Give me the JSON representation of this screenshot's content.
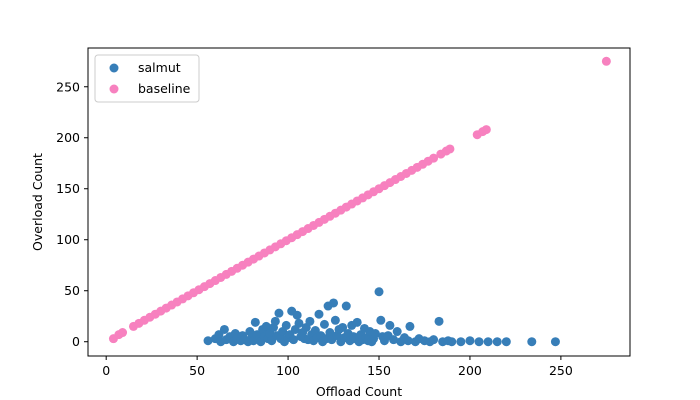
{
  "chart_data": {
    "type": "scatter",
    "xlabel": "Offload Count",
    "ylabel": "Overload Count",
    "xlim": [
      -10,
      288
    ],
    "ylim": [
      -14,
      288
    ],
    "xticks": [
      0,
      50,
      100,
      150,
      200,
      250
    ],
    "yticks": [
      0,
      50,
      100,
      150,
      200,
      250
    ],
    "grid": false,
    "legend_position": "top-left",
    "series": [
      {
        "name": "salmut",
        "color": "#377eb8",
        "points": [
          [
            56,
            1
          ],
          [
            60,
            3
          ],
          [
            62,
            7
          ],
          [
            63,
            0
          ],
          [
            65,
            12
          ],
          [
            66,
            2
          ],
          [
            68,
            5
          ],
          [
            70,
            0
          ],
          [
            71,
            8
          ],
          [
            72,
            3
          ],
          [
            74,
            1
          ],
          [
            75,
            6
          ],
          [
            76,
            2
          ],
          [
            78,
            0
          ],
          [
            79,
            10
          ],
          [
            80,
            4
          ],
          [
            81,
            1
          ],
          [
            82,
            19
          ],
          [
            83,
            7
          ],
          [
            84,
            2
          ],
          [
            85,
            0
          ],
          [
            86,
            12
          ],
          [
            87,
            5
          ],
          [
            88,
            15
          ],
          [
            89,
            3
          ],
          [
            90,
            8
          ],
          [
            91,
            1
          ],
          [
            92,
            14
          ],
          [
            93,
            20
          ],
          [
            94,
            6
          ],
          [
            95,
            28
          ],
          [
            96,
            3
          ],
          [
            97,
            10
          ],
          [
            98,
            0
          ],
          [
            99,
            16
          ],
          [
            100,
            4
          ],
          [
            101,
            7
          ],
          [
            102,
            30
          ],
          [
            103,
            2
          ],
          [
            104,
            12
          ],
          [
            105,
            26
          ],
          [
            106,
            18
          ],
          [
            107,
            5
          ],
          [
            108,
            9
          ],
          [
            109,
            3
          ],
          [
            110,
            14
          ],
          [
            111,
            2
          ],
          [
            112,
            20
          ],
          [
            113,
            7
          ],
          [
            114,
            1
          ],
          [
            115,
            11
          ],
          [
            116,
            4
          ],
          [
            117,
            27
          ],
          [
            118,
            6
          ],
          [
            119,
            0
          ],
          [
            120,
            17
          ],
          [
            121,
            3
          ],
          [
            122,
            35
          ],
          [
            123,
            9
          ],
          [
            124,
            2
          ],
          [
            125,
            38
          ],
          [
            126,
            21
          ],
          [
            127,
            6
          ],
          [
            128,
            12
          ],
          [
            129,
            0
          ],
          [
            130,
            14
          ],
          [
            131,
            4
          ],
          [
            132,
            35
          ],
          [
            133,
            8
          ],
          [
            134,
            1
          ],
          [
            135,
            16
          ],
          [
            136,
            5
          ],
          [
            137,
            3
          ],
          [
            138,
            19
          ],
          [
            139,
            0
          ],
          [
            140,
            7
          ],
          [
            141,
            2
          ],
          [
            142,
            13
          ],
          [
            143,
            4
          ],
          [
            144,
            1
          ],
          [
            145,
            10
          ],
          [
            146,
            0
          ],
          [
            147,
            3
          ],
          [
            148,
            8
          ],
          [
            150,
            49
          ],
          [
            151,
            21
          ],
          [
            152,
            5
          ],
          [
            153,
            1
          ],
          [
            155,
            6
          ],
          [
            156,
            16
          ],
          [
            158,
            2
          ],
          [
            160,
            10
          ],
          [
            162,
            0
          ],
          [
            164,
            4
          ],
          [
            166,
            1
          ],
          [
            167,
            15
          ],
          [
            170,
            0
          ],
          [
            172,
            3
          ],
          [
            175,
            1
          ],
          [
            178,
            0
          ],
          [
            180,
            2
          ],
          [
            183,
            20
          ],
          [
            185,
            0
          ],
          [
            188,
            1
          ],
          [
            190,
            0
          ],
          [
            195,
            0
          ],
          [
            200,
            1
          ],
          [
            205,
            0
          ],
          [
            210,
            0
          ],
          [
            215,
            0
          ],
          [
            220,
            0
          ],
          [
            234,
            0
          ],
          [
            247,
            0
          ]
        ]
      },
      {
        "name": "baseline",
        "color": "#f781bf",
        "points": [
          [
            4,
            3
          ],
          [
            7,
            7
          ],
          [
            9,
            9
          ],
          [
            15,
            15
          ],
          [
            18,
            18
          ],
          [
            21,
            21
          ],
          [
            24,
            24
          ],
          [
            27,
            27
          ],
          [
            30,
            30
          ],
          [
            33,
            33
          ],
          [
            36,
            36
          ],
          [
            39,
            39
          ],
          [
            42,
            42
          ],
          [
            45,
            45
          ],
          [
            48,
            48
          ],
          [
            51,
            51
          ],
          [
            54,
            54
          ],
          [
            57,
            57
          ],
          [
            60,
            60
          ],
          [
            63,
            63
          ],
          [
            66,
            66
          ],
          [
            69,
            69
          ],
          [
            72,
            72
          ],
          [
            75,
            75
          ],
          [
            78,
            78
          ],
          [
            81,
            81
          ],
          [
            84,
            84
          ],
          [
            87,
            87
          ],
          [
            90,
            90
          ],
          [
            93,
            93
          ],
          [
            96,
            96
          ],
          [
            99,
            99
          ],
          [
            102,
            102
          ],
          [
            105,
            105
          ],
          [
            108,
            108
          ],
          [
            111,
            111
          ],
          [
            114,
            114
          ],
          [
            117,
            117
          ],
          [
            120,
            120
          ],
          [
            123,
            123
          ],
          [
            126,
            126
          ],
          [
            129,
            129
          ],
          [
            132,
            132
          ],
          [
            135,
            135
          ],
          [
            138,
            138
          ],
          [
            141,
            141
          ],
          [
            144,
            144
          ],
          [
            147,
            147
          ],
          [
            150,
            150
          ],
          [
            153,
            153
          ],
          [
            156,
            156
          ],
          [
            159,
            159
          ],
          [
            162,
            162
          ],
          [
            165,
            165
          ],
          [
            168,
            168
          ],
          [
            171,
            171
          ],
          [
            174,
            174
          ],
          [
            177,
            177
          ],
          [
            180,
            180
          ],
          [
            184,
            184
          ],
          [
            187,
            187
          ],
          [
            189,
            189
          ],
          [
            204,
            203
          ],
          [
            207,
            206
          ],
          [
            209,
            208
          ],
          [
            275,
            275
          ]
        ]
      }
    ]
  }
}
